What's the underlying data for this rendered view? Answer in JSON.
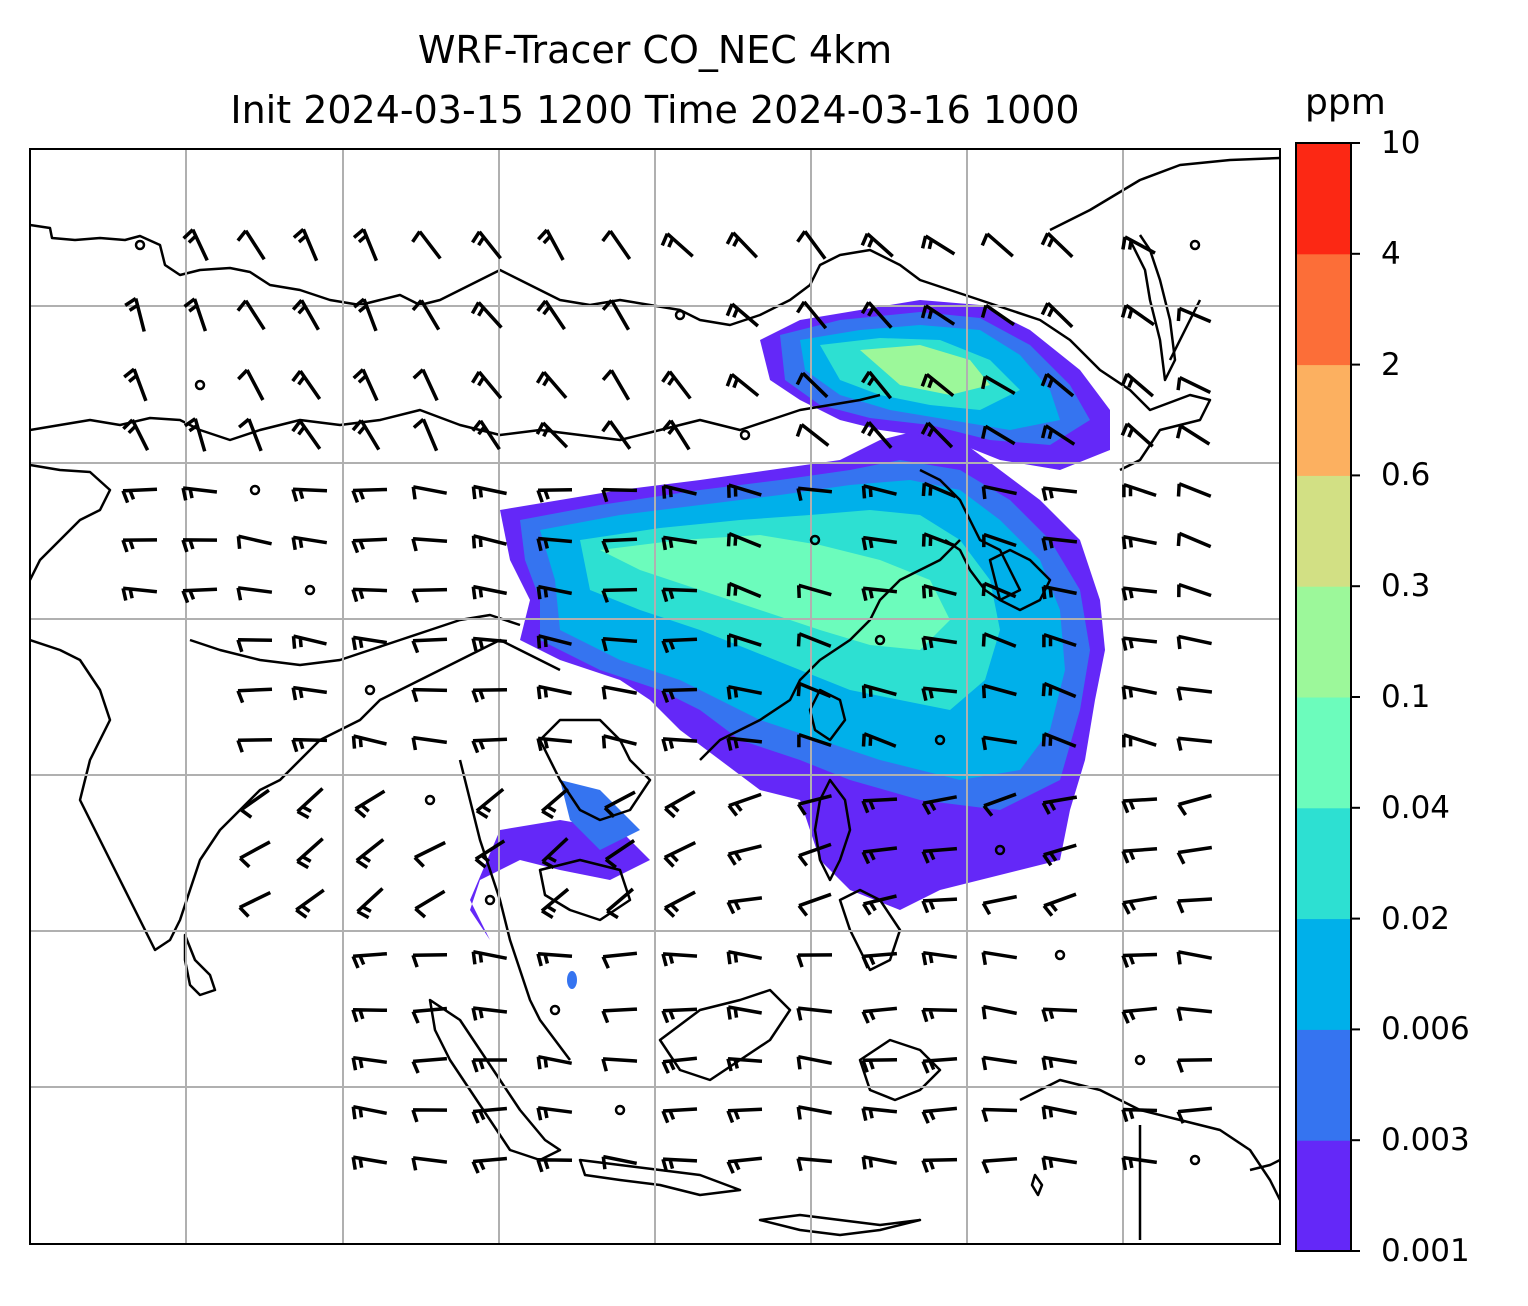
{
  "title": {
    "line1": "WRF-Tracer CO_NEC 4km",
    "line2": "Init 2024-03-15 1200 Time 2024-03-16 1000"
  },
  "colorbar": {
    "unit": "ppm",
    "levels": [
      "0.001",
      "0.003",
      "0.006",
      "0.02",
      "0.04",
      "0.1",
      "0.3",
      "0.6",
      "2",
      "4",
      "10"
    ],
    "colors": [
      "#6428f8",
      "#3574f0",
      "#00b0ea",
      "#2de0d2",
      "#6cfcbc",
      "#9cf89a",
      "#d2e084",
      "#fcb060",
      "#fc6e38",
      "#fc2814"
    ]
  },
  "map": {
    "field": "CO_NEC tracer concentration",
    "gridlines": true,
    "overlay": "wind barbs"
  }
}
